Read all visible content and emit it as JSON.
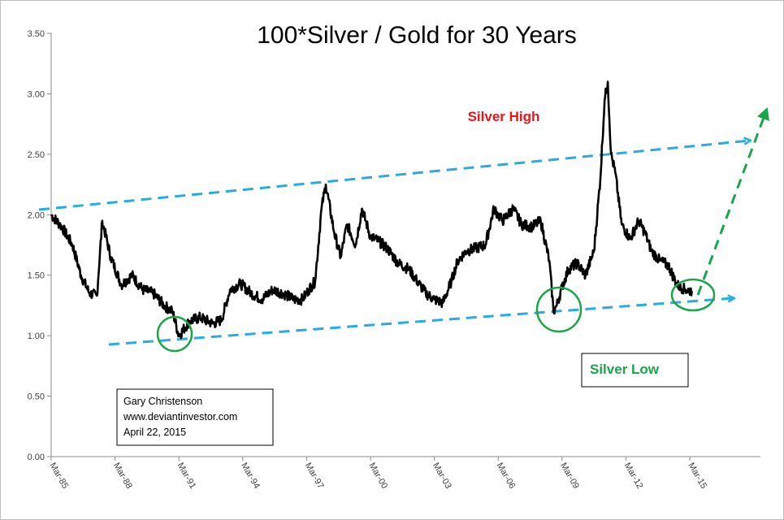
{
  "chart_data": {
    "type": "line",
    "title": "100*Silver / Gold for 30 Years",
    "xlabel": "",
    "ylabel": "",
    "ylim": [
      0,
      3.5
    ],
    "y_ticks": [
      "0.00",
      "0.50",
      "1.00",
      "1.50",
      "2.00",
      "2.50",
      "3.00",
      "3.50"
    ],
    "x_ticks": [
      "Mar-85",
      "Mar-88",
      "Mar-91",
      "Mar-94",
      "Mar-97",
      "Mar-00",
      "Mar-03",
      "Mar-06",
      "Mar-09",
      "Mar-12",
      "Mar-15"
    ],
    "grid": false,
    "series": [
      {
        "x": [
          1985.2,
          1985.7,
          1986.2,
          1986.6,
          1987.0,
          1987.35,
          1987.6,
          1988.0,
          1988.5,
          1989.0,
          1989.5,
          1990.0,
          1990.5,
          1990.9,
          1991.2,
          1991.7,
          1992.2,
          1992.8,
          1993.2,
          1993.6,
          1994.1,
          1994.6,
          1995.1,
          1995.6,
          1996.1,
          1996.6,
          1997.0,
          1997.3,
          1997.6,
          1997.9,
          1998.1,
          1998.5,
          1998.8,
          1999.1,
          1999.5,
          1999.8,
          2000.2,
          2000.6,
          2001.0,
          2001.5,
          2002.0,
          2002.4,
          2002.8,
          2003.2,
          2003.6,
          2004.0,
          2004.3,
          2004.7,
          2005.1,
          2005.6,
          2006.0,
          2006.4,
          2006.9,
          2007.3,
          2007.8,
          2008.2,
          2008.6,
          2008.8,
          2008.95,
          2009.2,
          2009.5,
          2009.9,
          2010.3,
          2010.7,
          2011.0,
          2011.2,
          2011.35,
          2011.5,
          2011.7,
          2012.0,
          2012.4,
          2012.8,
          2013.1,
          2013.4,
          2013.8,
          2014.2,
          2014.6,
          2015.0,
          2015.3
        ],
        "y": [
          2.0,
          1.9,
          1.75,
          1.5,
          1.35,
          1.33,
          1.95,
          1.65,
          1.42,
          1.5,
          1.38,
          1.35,
          1.25,
          1.2,
          1.0,
          1.12,
          1.15,
          1.1,
          1.13,
          1.38,
          1.43,
          1.35,
          1.3,
          1.38,
          1.35,
          1.3,
          1.3,
          1.38,
          1.45,
          2.05,
          2.25,
          1.85,
          1.65,
          1.92,
          1.75,
          2.05,
          1.82,
          1.78,
          1.72,
          1.6,
          1.55,
          1.45,
          1.35,
          1.3,
          1.27,
          1.45,
          1.62,
          1.7,
          1.72,
          1.75,
          2.05,
          1.95,
          2.05,
          1.92,
          1.9,
          1.95,
          1.62,
          1.2,
          1.25,
          1.4,
          1.55,
          1.6,
          1.5,
          1.7,
          2.3,
          2.95,
          3.1,
          2.5,
          2.35,
          1.92,
          1.8,
          1.95,
          1.85,
          1.7,
          1.62,
          1.58,
          1.42,
          1.38,
          1.37
        ]
      }
    ],
    "annotations": [
      {
        "text": "Silver High",
        "type": "label",
        "color": "#e8161b"
      },
      {
        "text": "Silver Low",
        "type": "boxed label",
        "color": "#19a64a"
      },
      {
        "type": "upper trend line (dashed)",
        "color": "#29abe2"
      },
      {
        "type": "lower trend line (dashed)",
        "color": "#29abe2"
      },
      {
        "type": "projection arrow (dashed)",
        "color": "#19a64a"
      },
      {
        "type": "circled lows",
        "color": "#19a64a",
        "count": 3
      }
    ],
    "line_color": "#000000"
  },
  "credit": {
    "line1": "Gary Christenson",
    "line2": "www.deviantinvestor.com",
    "line3": "April 22, 2015"
  }
}
